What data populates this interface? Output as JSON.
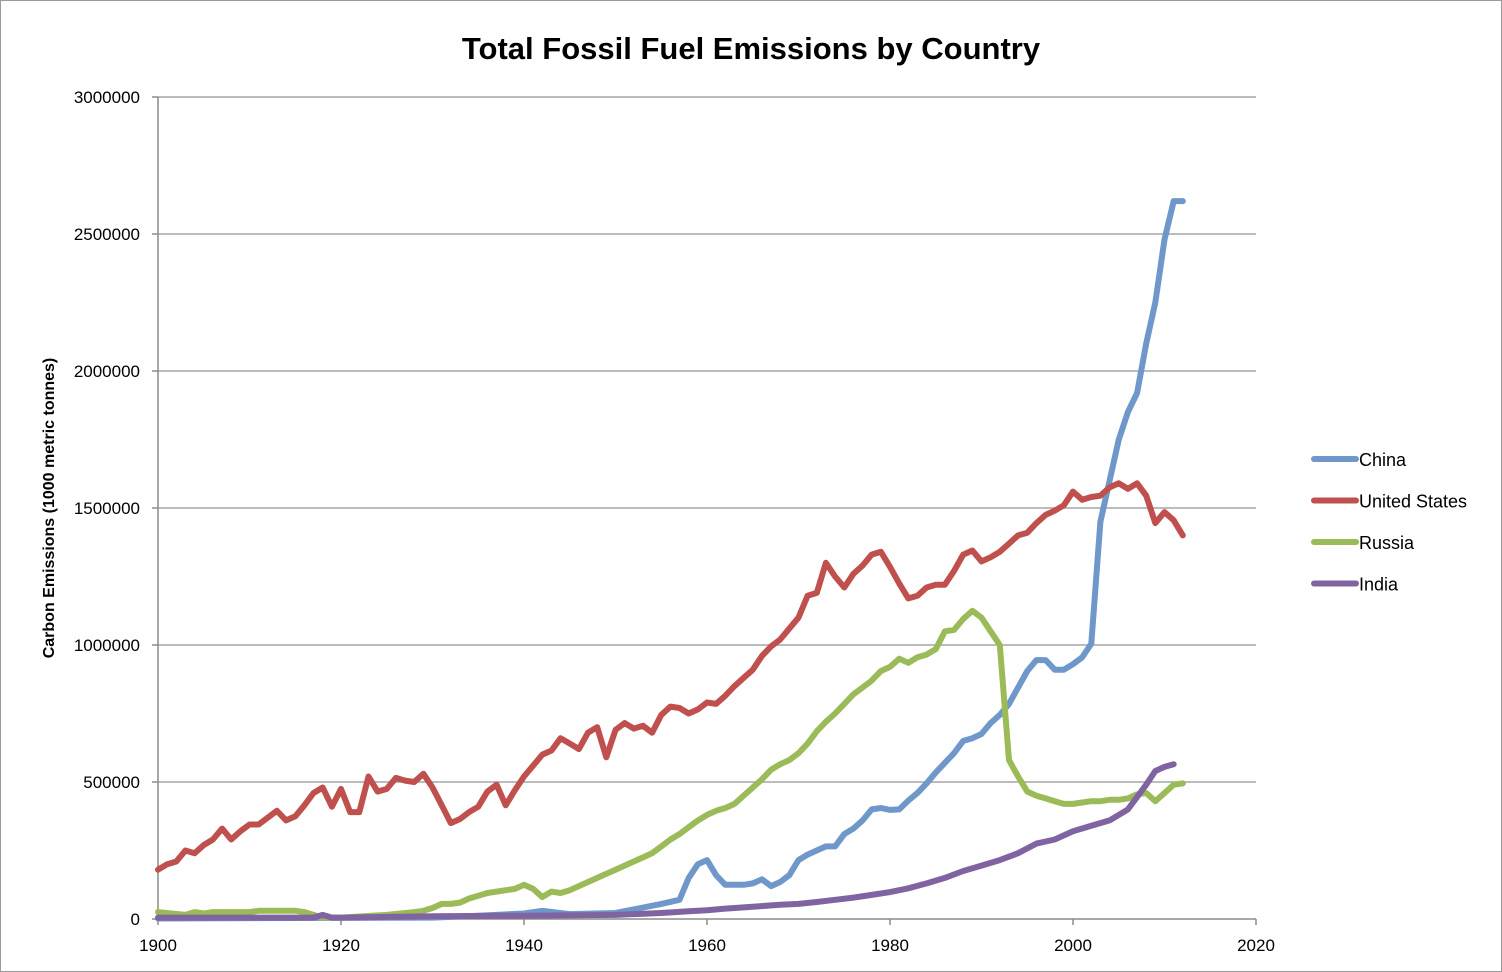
{
  "chart_data": {
    "type": "line",
    "title": "Total Fossil Fuel Emissions by Country",
    "xlabel": "",
    "ylabel": "Carbon Emissions (1000 metric tonnes)",
    "xlim": [
      1900,
      2020
    ],
    "ylim": [
      0,
      3000000
    ],
    "xticks": [
      1900,
      1920,
      1940,
      1960,
      1980,
      2000,
      2020
    ],
    "yticks": [
      0,
      500000,
      1000000,
      1500000,
      2000000,
      2500000,
      3000000
    ],
    "grid": "horizontal",
    "legend_position": "right",
    "series": [
      {
        "name": "China",
        "color": "#6f97c9",
        "x": [
          1900,
          1930,
          1935,
          1940,
          1942,
          1945,
          1950,
          1955,
          1957,
          1958,
          1959,
          1960,
          1961,
          1962,
          1963,
          1964,
          1965,
          1966,
          1967,
          1968,
          1969,
          1970,
          1971,
          1973,
          1974,
          1975,
          1976,
          1977,
          1978,
          1979,
          1980,
          1981,
          1982,
          1983,
          1984,
          1985,
          1986,
          1987,
          1988,
          1989,
          1990,
          1991,
          1992,
          1993,
          1994,
          1995,
          1996,
          1997,
          1998,
          1999,
          2000,
          2001,
          2002,
          2003,
          2004,
          2005,
          2006,
          2007,
          2008,
          2009,
          2010,
          2011,
          2012
        ],
        "y": [
          2000,
          5000,
          12000,
          20000,
          30000,
          18000,
          22000,
          55000,
          70000,
          150000,
          200000,
          215000,
          160000,
          125000,
          125000,
          125000,
          130000,
          145000,
          120000,
          135000,
          160000,
          215000,
          235000,
          265000,
          265000,
          310000,
          330000,
          360000,
          400000,
          405000,
          398000,
          400000,
          432000,
          460000,
          495000,
          535000,
          570000,
          605000,
          650000,
          660000,
          675000,
          715000,
          745000,
          785000,
          845000,
          905000,
          945000,
          945000,
          910000,
          910000,
          930000,
          955000,
          1005000,
          1450000,
          1600000,
          1750000,
          1850000,
          1920000,
          2100000,
          2250000,
          2480000,
          2620000,
          2620000
        ]
      },
      {
        "name": "United States",
        "color": "#c0504d",
        "x": [
          1900,
          1901,
          1902,
          1903,
          1904,
          1905,
          1906,
          1907,
          1908,
          1909,
          1910,
          1911,
          1912,
          1913,
          1914,
          1915,
          1916,
          1917,
          1918,
          1919,
          1920,
          1921,
          1922,
          1923,
          1924,
          1925,
          1926,
          1927,
          1928,
          1929,
          1930,
          1931,
          1932,
          1933,
          1934,
          1935,
          1936,
          1937,
          1938,
          1939,
          1940,
          1941,
          1942,
          1943,
          1944,
          1945,
          1946,
          1947,
          1948,
          1949,
          1950,
          1951,
          1952,
          1953,
          1954,
          1955,
          1956,
          1957,
          1958,
          1959,
          1960,
          1961,
          1962,
          1963,
          1964,
          1965,
          1966,
          1967,
          1968,
          1969,
          1970,
          1971,
          1972,
          1973,
          1974,
          1975,
          1976,
          1977,
          1978,
          1979,
          1980,
          1981,
          1982,
          1983,
          1984,
          1985,
          1986,
          1987,
          1988,
          1989,
          1990,
          1991,
          1992,
          1993,
          1994,
          1995,
          1996,
          1997,
          1998,
          1999,
          2000,
          2001,
          2002,
          2003,
          2004,
          2005,
          2006,
          2007,
          2008,
          2009,
          2010,
          2011,
          2012
        ],
        "y": [
          180000,
          200000,
          210000,
          250000,
          240000,
          270000,
          290000,
          330000,
          290000,
          320000,
          345000,
          345000,
          370000,
          395000,
          360000,
          375000,
          415000,
          460000,
          480000,
          410000,
          475000,
          390000,
          390000,
          520000,
          465000,
          475000,
          515000,
          505000,
          500000,
          530000,
          480000,
          415000,
          350000,
          365000,
          390000,
          410000,
          465000,
          490000,
          415000,
          470000,
          520000,
          560000,
          600000,
          615000,
          660000,
          640000,
          620000,
          680000,
          700000,
          590000,
          690000,
          715000,
          695000,
          705000,
          680000,
          745000,
          775000,
          770000,
          750000,
          765000,
          790000,
          785000,
          815000,
          850000,
          880000,
          910000,
          960000,
          995000,
          1020000,
          1060000,
          1100000,
          1180000,
          1190000,
          1300000,
          1250000,
          1210000,
          1260000,
          1290000,
          1330000,
          1340000,
          1285000,
          1225000,
          1170000,
          1180000,
          1210000,
          1220000,
          1220000,
          1270000,
          1330000,
          1345000,
          1305000,
          1320000,
          1340000,
          1370000,
          1400000,
          1410000,
          1445000,
          1475000,
          1490000,
          1510000,
          1560000,
          1530000,
          1540000,
          1545000,
          1575000,
          1590000,
          1570000,
          1590000,
          1545000,
          1445000,
          1485000,
          1455000,
          1400000
        ]
      },
      {
        "name": "Russia",
        "color": "#9bbb59",
        "x": [
          1900,
          1903,
          1904,
          1905,
          1906,
          1910,
          1911,
          1915,
          1916,
          1917,
          1918,
          1920,
          1925,
          1928,
          1929,
          1930,
          1931,
          1932,
          1933,
          1934,
          1935,
          1936,
          1937,
          1938,
          1939,
          1940,
          1941,
          1942,
          1943,
          1944,
          1945,
          1946,
          1947,
          1948,
          1949,
          1950,
          1951,
          1952,
          1953,
          1954,
          1955,
          1956,
          1957,
          1958,
          1959,
          1960,
          1961,
          1962,
          1963,
          1964,
          1965,
          1966,
          1967,
          1968,
          1969,
          1970,
          1971,
          1972,
          1973,
          1974,
          1975,
          1976,
          1977,
          1978,
          1979,
          1980,
          1981,
          1982,
          1983,
          1984,
          1985,
          1986,
          1987,
          1988,
          1989,
          1990,
          1991,
          1992,
          1993,
          1994,
          1995,
          1996,
          1997,
          1998,
          1999,
          2000,
          2001,
          2002,
          2003,
          2004,
          2005,
          2006,
          2007,
          2008,
          2009,
          2010,
          2011,
          2012
        ],
        "y": [
          25000,
          15000,
          25000,
          20000,
          25000,
          25000,
          30000,
          30000,
          25000,
          15000,
          5000,
          5000,
          15000,
          25000,
          30000,
          40000,
          55000,
          55000,
          60000,
          75000,
          85000,
          95000,
          100000,
          105000,
          110000,
          125000,
          110000,
          80000,
          100000,
          95000,
          105000,
          120000,
          135000,
          150000,
          165000,
          180000,
          195000,
          210000,
          225000,
          240000,
          265000,
          290000,
          310000,
          335000,
          360000,
          380000,
          395000,
          405000,
          420000,
          450000,
          480000,
          510000,
          545000,
          565000,
          580000,
          605000,
          640000,
          685000,
          720000,
          750000,
          785000,
          820000,
          845000,
          870000,
          905000,
          920000,
          950000,
          935000,
          955000,
          965000,
          985000,
          1050000,
          1055000,
          1095000,
          1125000,
          1100000,
          1050000,
          1000000,
          580000,
          520000,
          465000,
          450000,
          440000,
          430000,
          420000,
          420000,
          425000,
          430000,
          430000,
          435000,
          435000,
          440000,
          455000,
          460000,
          430000,
          460000,
          490000,
          495000
        ]
      },
      {
        "name": "India",
        "color": "#8064a2",
        "x": [
          1900,
          1917,
          1918,
          1919,
          1920,
          1930,
          1940,
          1950,
          1955,
          1958,
          1960,
          1962,
          1965,
          1968,
          1970,
          1972,
          1974,
          1976,
          1978,
          1980,
          1982,
          1984,
          1986,
          1988,
          1990,
          1992,
          1994,
          1996,
          1998,
          2000,
          2002,
          2004,
          2006,
          2008,
          2009,
          2010,
          2011
        ],
        "y": [
          5000,
          5000,
          15000,
          5000,
          5000,
          10000,
          12000,
          15000,
          22000,
          28000,
          32000,
          38000,
          45000,
          52000,
          55000,
          62000,
          70000,
          78000,
          88000,
          98000,
          112000,
          130000,
          150000,
          175000,
          195000,
          215000,
          240000,
          275000,
          290000,
          320000,
          340000,
          360000,
          400000,
          490000,
          540000,
          555000,
          565000
        ]
      }
    ]
  }
}
